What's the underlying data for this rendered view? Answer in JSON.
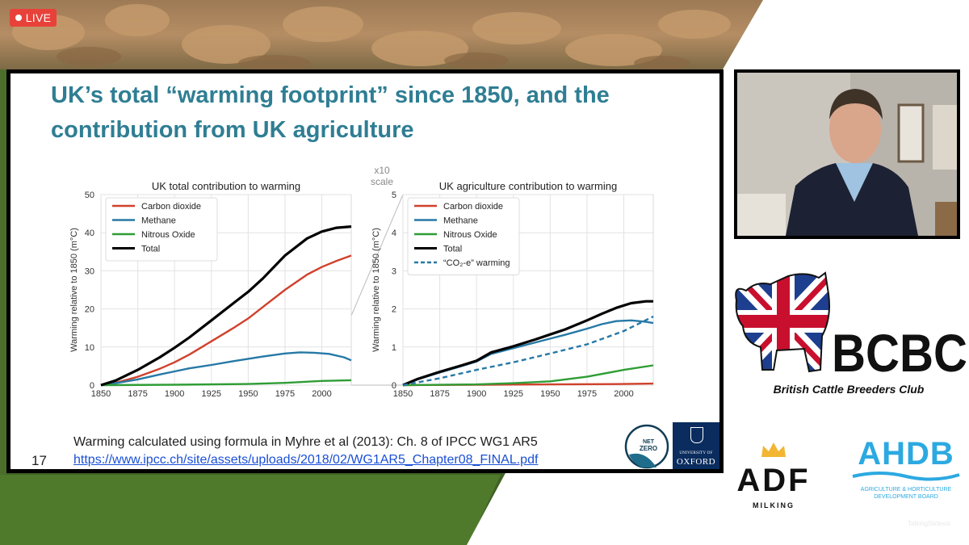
{
  "stream": {
    "live_label": "LIVE",
    "watermark": "TalkingSlidesst"
  },
  "colors": {
    "live_red": "#e8413a",
    "title_teal": "#2f7e93",
    "co2": "#d0412c",
    "methane": "#2679a6",
    "nitrous": "#2f9d35",
    "total": "#000000",
    "ahdb_blue": "#2ca9e1"
  },
  "slide": {
    "title_line1": "UK’s total “warming footprint” since 1850, and the",
    "title_line2": "contribution from UK agriculture",
    "scale_note_line1": "x10",
    "scale_note_line2": "scale",
    "footnote": "Warming calculated using formula in Myhre et al (2013): Ch. 8 of IPCC WG1 AR5",
    "link": "https://www.ipcc.ch/site/assets/uploads/2018/02/WG1AR5_Chapter08_FINAL.pdf",
    "page_number": "17",
    "nz_logo_line1": "NET",
    "nz_logo_line2": "ZERO",
    "ox_logo_top": "UNIVERSITY OF",
    "ox_logo_name": "OXFORD"
  },
  "chart_data": [
    {
      "type": "line",
      "title": "UK total contribution to warming",
      "ylabel": "Warming relative to 1850 (m°C)",
      "xlabel": "",
      "xlim": [
        1850,
        2020
      ],
      "ylim": [
        0,
        50
      ],
      "xticks": [
        1850,
        1875,
        1900,
        1925,
        1950,
        1975,
        2000
      ],
      "yticks": [
        0,
        10,
        20,
        30,
        40,
        50
      ],
      "grid": true,
      "legend": "top-left",
      "series": [
        {
          "name": "Carbon dioxide",
          "color": "#d0412c",
          "style": "solid",
          "x": [
            1850,
            1860,
            1875,
            1890,
            1900,
            1910,
            1925,
            1940,
            1950,
            1960,
            1975,
            1990,
            2000,
            2010,
            2020
          ],
          "y": [
            0,
            0.6,
            2.2,
            4.3,
            6,
            8,
            11.5,
            15,
            17.5,
            20.5,
            25,
            29,
            31,
            32.6,
            34
          ]
        },
        {
          "name": "Methane",
          "color": "#2679a6",
          "style": "solid",
          "x": [
            1850,
            1860,
            1875,
            1890,
            1900,
            1910,
            1925,
            1940,
            1950,
            1960,
            1975,
            1985,
            1995,
            2005,
            2015,
            2020
          ],
          "y": [
            0,
            0.5,
            1.5,
            2.8,
            3.6,
            4.4,
            5.3,
            6.3,
            6.9,
            7.5,
            8.3,
            8.6,
            8.5,
            8.2,
            7.3,
            6.5
          ]
        },
        {
          "name": "Nitrous Oxide",
          "color": "#2f9d35",
          "style": "solid",
          "x": [
            1850,
            1900,
            1950,
            1975,
            2000,
            2020
          ],
          "y": [
            0,
            0.1,
            0.3,
            0.6,
            1.1,
            1.3
          ]
        },
        {
          "name": "Total",
          "color": "#000000",
          "style": "solid",
          "x": [
            1850,
            1860,
            1875,
            1890,
            1900,
            1910,
            1925,
            1940,
            1950,
            1960,
            1975,
            1990,
            2000,
            2010,
            2020
          ],
          "y": [
            0,
            1.2,
            4,
            7.3,
            9.8,
            12.5,
            17,
            21.5,
            24.5,
            28,
            34,
            38.5,
            40.3,
            41.3,
            41.6
          ]
        }
      ]
    },
    {
      "type": "line",
      "title": "UK agriculture contribution to warming",
      "ylabel": "Warming relative to 1850 (m°C)",
      "xlabel": "",
      "xlim": [
        1850,
        2020
      ],
      "ylim": [
        0,
        5
      ],
      "xticks": [
        1850,
        1875,
        1900,
        1925,
        1950,
        1975,
        2000
      ],
      "yticks": [
        0,
        1,
        2,
        3,
        4,
        5
      ],
      "grid": true,
      "legend": "top-left",
      "series": [
        {
          "name": "Carbon dioxide",
          "color": "#d0412c",
          "style": "solid",
          "x": [
            1850,
            1900,
            1950,
            2000,
            2020
          ],
          "y": [
            0,
            0.01,
            0.02,
            0.03,
            0.04
          ]
        },
        {
          "name": "Methane",
          "color": "#2679a6",
          "style": "solid",
          "x": [
            1850,
            1860,
            1875,
            1890,
            1900,
            1910,
            1925,
            1940,
            1950,
            1960,
            1975,
            1985,
            1995,
            2005,
            2015,
            2020
          ],
          "y": [
            0,
            0.15,
            0.33,
            0.5,
            0.62,
            0.82,
            0.97,
            1.12,
            1.22,
            1.32,
            1.48,
            1.6,
            1.68,
            1.7,
            1.66,
            1.63
          ]
        },
        {
          "name": "Nitrous Oxide",
          "color": "#2f9d35",
          "style": "solid",
          "x": [
            1850,
            1900,
            1925,
            1950,
            1975,
            2000,
            2020
          ],
          "y": [
            0,
            0.02,
            0.05,
            0.1,
            0.22,
            0.4,
            0.52
          ]
        },
        {
          "name": "Total",
          "color": "#000000",
          "style": "solid",
          "x": [
            1850,
            1860,
            1875,
            1890,
            1900,
            1910,
            1925,
            1940,
            1950,
            1960,
            1975,
            1985,
            1995,
            2005,
            2015,
            2020
          ],
          "y": [
            0,
            0.16,
            0.35,
            0.52,
            0.64,
            0.86,
            1.02,
            1.2,
            1.33,
            1.46,
            1.7,
            1.87,
            2.03,
            2.15,
            2.2,
            2.2
          ]
        },
        {
          "name": "“CO₂-e” warming",
          "color": "#2679a6",
          "style": "dashed",
          "x": [
            1850,
            1875,
            1900,
            1925,
            1950,
            1975,
            2000,
            2020
          ],
          "y": [
            0,
            0.18,
            0.4,
            0.6,
            0.83,
            1.07,
            1.42,
            1.8
          ]
        }
      ]
    }
  ],
  "bcbc": {
    "name": "BCBC",
    "subtitle": "British Cattle Breeders Club"
  },
  "adf": {
    "name": "ADF",
    "subtitle": "MILKING"
  },
  "ahdb": {
    "name": "AHDB",
    "subtitle_line1": "AGRICULTURE & HORTICULTURE",
    "subtitle_line2": "DEVELOPMENT BOARD"
  }
}
